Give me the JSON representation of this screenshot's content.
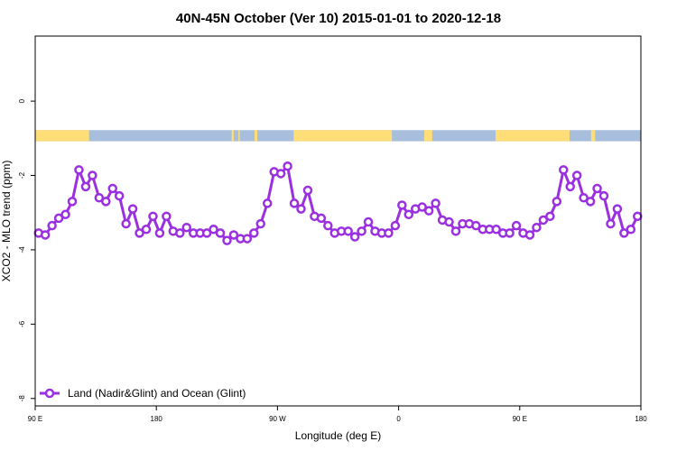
{
  "chart_data": {
    "type": "line",
    "title": "40N-45N October (Ver 10)   2015-01-01 to 2020-12-18",
    "xlabel": "Longitude (deg E)",
    "ylabel": "XCO2 - MLO trend (ppm)",
    "x_ticks": [
      {
        "pos": 90,
        "label": "90 E"
      },
      {
        "pos": 180,
        "label": "180"
      },
      {
        "pos": 270,
        "label": "90 W"
      },
      {
        "pos": 360,
        "label": "0"
      },
      {
        "pos": 450,
        "label": "90 E"
      },
      {
        "pos": 540,
        "label": "180"
      }
    ],
    "y_ticks": [
      {
        "value": 0,
        "label": "0"
      },
      {
        "value": -2,
        "label": "-2"
      },
      {
        "value": -4,
        "label": "-4"
      },
      {
        "value": -6,
        "label": "-6"
      },
      {
        "value": -8,
        "label": "-8"
      }
    ],
    "xlim": [
      90,
      540
    ],
    "ylim": [
      -8.2,
      1.75
    ],
    "legend_position": "bottom-left",
    "grid": false,
    "surface_strip": {
      "y_range": [
        -1.08,
        -0.78
      ],
      "colors": {
        "land": "#FFDD77",
        "ocean": "#A8BEDD"
      },
      "land_intervals": [
        [
          90,
          130
        ],
        [
          236,
          237.5
        ],
        [
          241,
          242
        ],
        [
          253,
          255
        ],
        [
          282,
          355
        ],
        [
          379,
          385
        ],
        [
          432,
          487
        ],
        [
          503,
          506
        ]
      ]
    },
    "series": [
      {
        "name": "Land (Nadir&Glint) and Ocean (Glint)",
        "color": "#9B30E0",
        "x": [
          92.5,
          97.5,
          102.5,
          107.5,
          112.5,
          117.5,
          122.5,
          127.5,
          132.5,
          137.5,
          142.5,
          147.5,
          152.5,
          157.5,
          162.5,
          167.5,
          172.5,
          177.5,
          182.5,
          187.5,
          192.5,
          197.5,
          202.5,
          207.5,
          212.5,
          217.5,
          222.5,
          227.5,
          232.5,
          237.5,
          242.5,
          247.5,
          252.5,
          257.5,
          262.5,
          267.5,
          272.5,
          277.5,
          282.5,
          287.5,
          292.5,
          297.5,
          302.5,
          307.5,
          312.5,
          317.5,
          322.5,
          327.5,
          332.5,
          337.5,
          342.5,
          347.5,
          352.5,
          357.5,
          362.5,
          367.5,
          372.5,
          377.5,
          382.5,
          387.5,
          392.5,
          397.5,
          402.5,
          407.5,
          412.5,
          417.5,
          422.5,
          427.5,
          432.5,
          437.5,
          442.5,
          447.5,
          452.5,
          457.5,
          462.5,
          467.5,
          472.5,
          477.5,
          482.5,
          487.5,
          492.5,
          497.5,
          502.5,
          507.5,
          512.5,
          517.5,
          522.5,
          527.5,
          532.5,
          537.5
        ],
        "values": [
          -3.55,
          -3.6,
          -3.35,
          -3.15,
          -3.05,
          -2.7,
          -1.85,
          -2.3,
          -2.0,
          -2.6,
          -2.7,
          -2.35,
          -2.55,
          -3.3,
          -2.9,
          -3.55,
          -3.45,
          -3.1,
          -3.55,
          -3.1,
          -3.5,
          -3.55,
          -3.4,
          -3.55,
          -3.55,
          -3.55,
          -3.45,
          -3.55,
          -3.75,
          -3.6,
          -3.7,
          -3.7,
          -3.55,
          -3.3,
          -2.75,
          -1.9,
          -1.95,
          -1.75,
          -2.75,
          -2.9,
          -2.4,
          -3.1,
          -3.15,
          -3.35,
          -3.55,
          -3.5,
          -3.5,
          -3.65,
          -3.5,
          -3.25,
          -3.5,
          -3.55,
          -3.55,
          -3.35,
          -2.8,
          -3.05,
          -2.9,
          -2.85,
          -2.95,
          -2.75,
          -3.2,
          -3.25,
          -3.5,
          -3.3,
          -3.3,
          -3.35,
          -3.45,
          -3.45,
          -3.45,
          -3.55,
          -3.55,
          -3.35,
          -3.55,
          -3.6,
          -3.4,
          -3.2,
          -3.1,
          -2.7,
          -1.85,
          -2.3,
          -2.0,
          -2.6,
          -2.7,
          -2.35,
          -2.55,
          -3.3,
          -2.9,
          -3.55,
          -3.45,
          -3.1
        ]
      }
    ]
  }
}
